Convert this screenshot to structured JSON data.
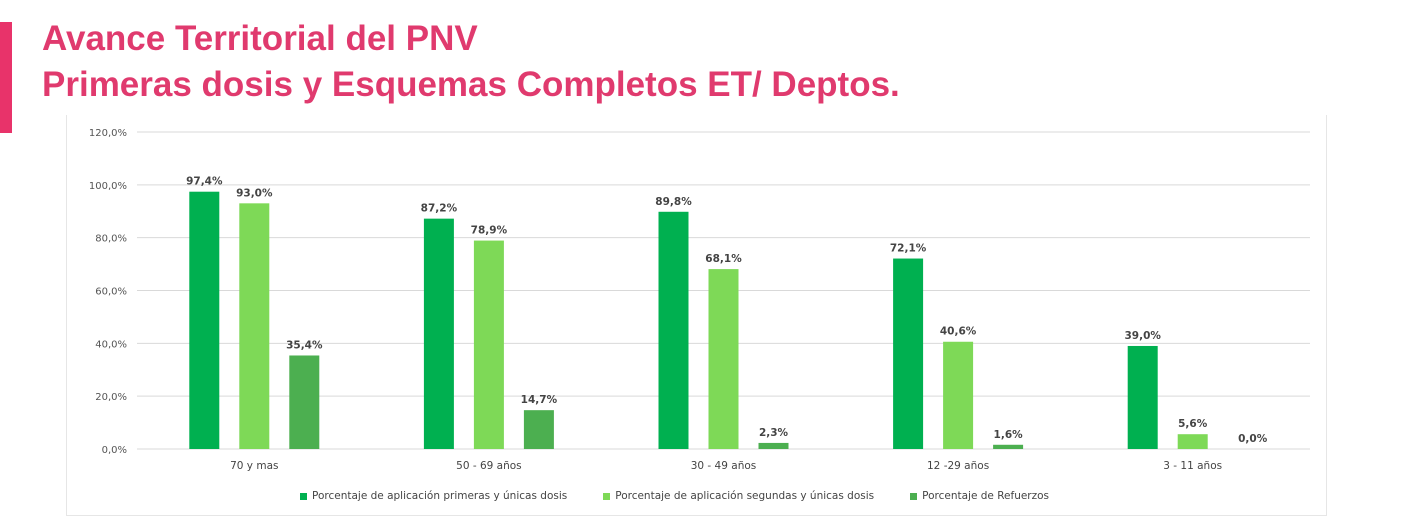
{
  "title": {
    "line1": "Avance Territorial del PNV",
    "line2": "Primeras dosis y Esquemas Completos ET/  Deptos."
  },
  "colors": {
    "accent": "#e8336a",
    "title": "#e03a6e",
    "series": [
      "#00b050",
      "#7ed957",
      "#4caf50"
    ]
  },
  "chart_data": {
    "type": "bar",
    "categories": [
      "70  y mas",
      "50 - 69 años",
      "30 - 49 años",
      "12 -29 años",
      "3 - 11 años"
    ],
    "series": [
      {
        "name": "Porcentaje de aplicación primeras y únicas dosis",
        "values": [
          97.4,
          87.2,
          89.8,
          72.1,
          39.0
        ],
        "labels": [
          "97,4%",
          "87,2%",
          "89,8%",
          "72,1%",
          "39,0%"
        ]
      },
      {
        "name": "Porcentaje de aplicación segundas y únicas dosis",
        "values": [
          93.0,
          78.9,
          68.1,
          40.6,
          5.6
        ],
        "labels": [
          "93,0%",
          "78,9%",
          "68,1%",
          "40,6%",
          "5,6%"
        ]
      },
      {
        "name": "Porcentaje de Refuerzos",
        "values": [
          35.4,
          14.7,
          2.3,
          1.6,
          0.0
        ],
        "labels": [
          "35,4%",
          "14,7%",
          "2,3%",
          "1,6%",
          "0,0%"
        ]
      }
    ],
    "yticks": [
      "0,0%",
      "20,0%",
      "40,0%",
      "60,0%",
      "80,0%",
      "100,0%",
      "120,0%"
    ],
    "ylim": [
      0,
      120
    ],
    "grid": true,
    "legend_position": "bottom"
  }
}
